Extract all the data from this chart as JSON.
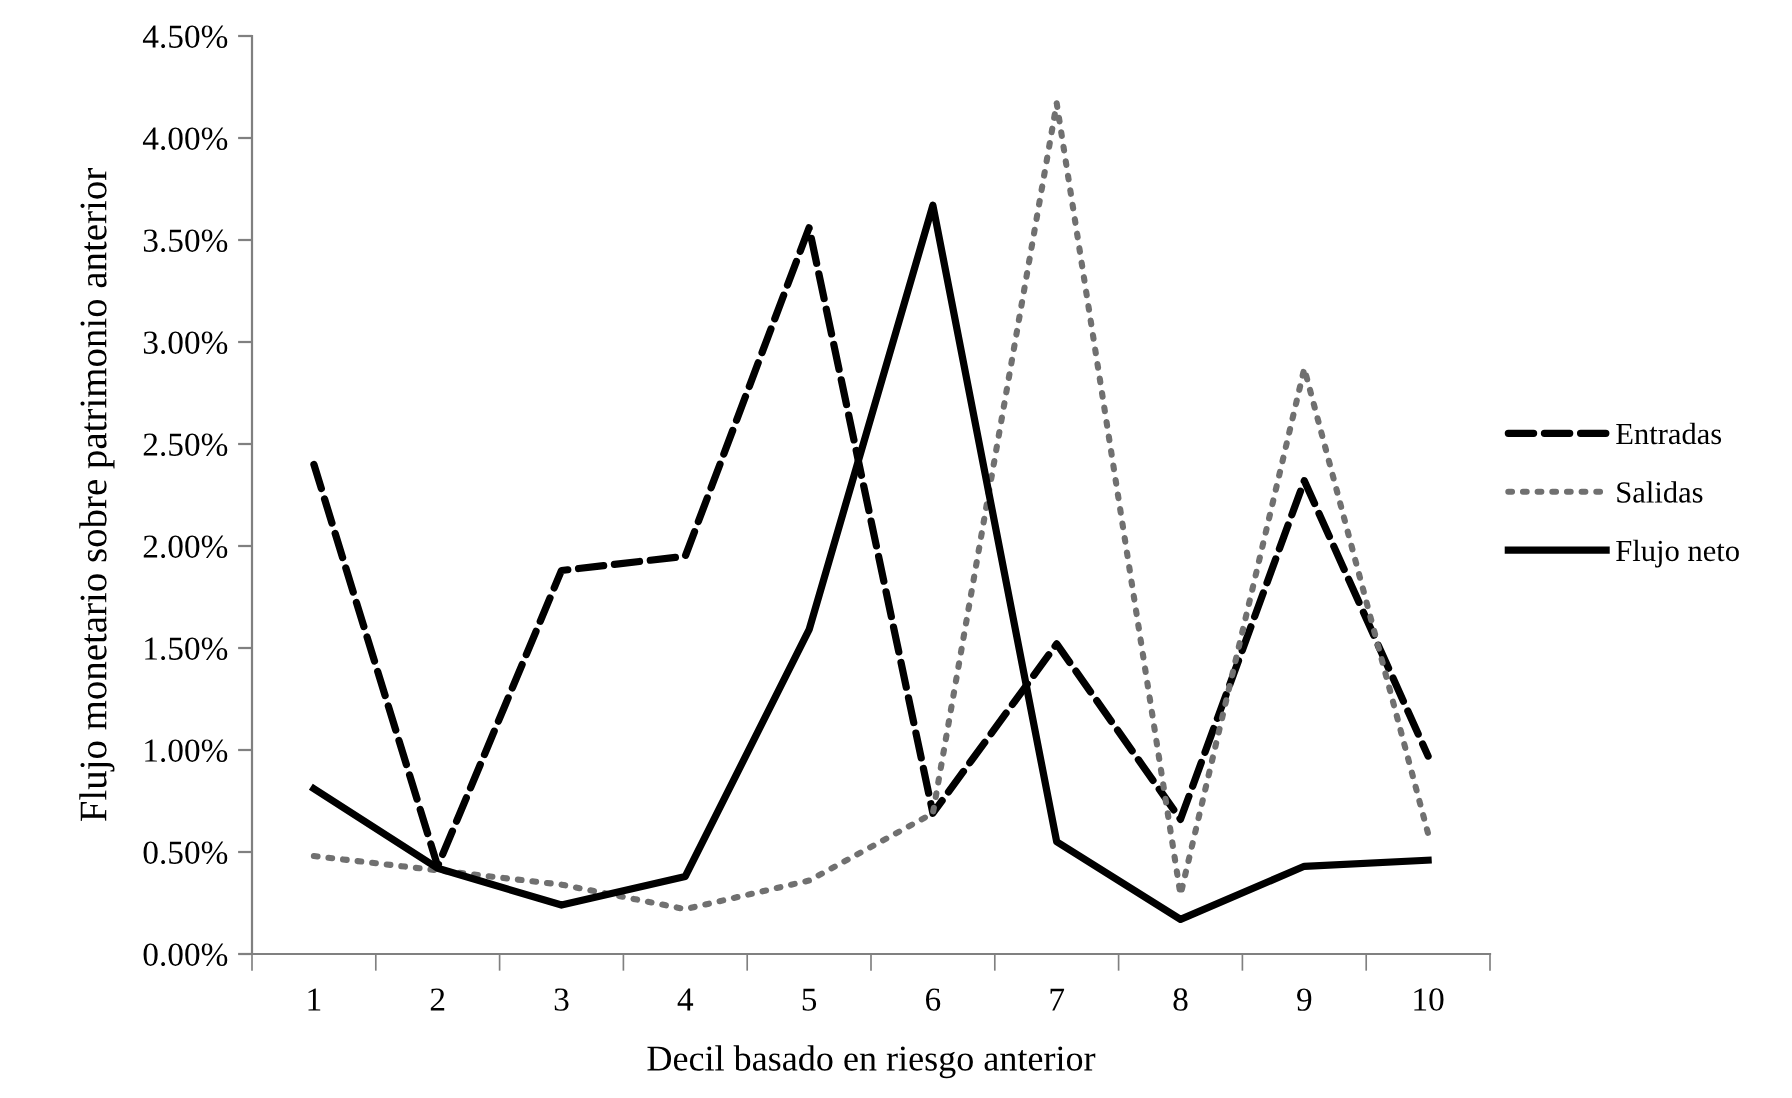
{
  "chart_data": {
    "type": "line",
    "xlabel": "Decil basado en riesgo anterior",
    "ylabel": "Flujo monetario sobre patrimonio anterior",
    "categories": [
      "1",
      "2",
      "3",
      "4",
      "5",
      "6",
      "7",
      "8",
      "9",
      "10"
    ],
    "series": [
      {
        "name": "Entradas",
        "color": "#000000",
        "line_style": "dashed",
        "values": [
          2.4,
          0.43,
          1.88,
          1.95,
          3.56,
          0.69,
          1.52,
          0.66,
          2.32,
          0.97
        ]
      },
      {
        "name": "Salidas",
        "color": "#707070",
        "line_style": "dotted",
        "values": [
          0.48,
          0.41,
          0.34,
          0.22,
          0.36,
          0.69,
          4.17,
          0.29,
          2.87,
          0.59
        ]
      },
      {
        "name": "Flujo neto",
        "color": "#000000",
        "line_style": "solid",
        "values": [
          0.81,
          0.42,
          0.24,
          0.38,
          1.59,
          3.67,
          0.55,
          0.17,
          0.43,
          0.46
        ]
      }
    ],
    "ylim": [
      0,
      4.5
    ],
    "yticks": [
      {
        "value": 0,
        "label": "0.00%"
      },
      {
        "value": 0.5,
        "label": "0.50%"
      },
      {
        "value": 1,
        "label": "1.00%"
      },
      {
        "value": 1.5,
        "label": "1.50%"
      },
      {
        "value": 2,
        "label": "2.00%"
      },
      {
        "value": 2.5,
        "label": "2.50%"
      },
      {
        "value": 3,
        "label": "3.00%"
      },
      {
        "value": 3.5,
        "label": "3.50%"
      },
      {
        "value": 4,
        "label": "4.00%"
      },
      {
        "value": 4.5,
        "label": "4.50%"
      }
    ],
    "grid": false,
    "legend": "right",
    "marker": "none"
  }
}
